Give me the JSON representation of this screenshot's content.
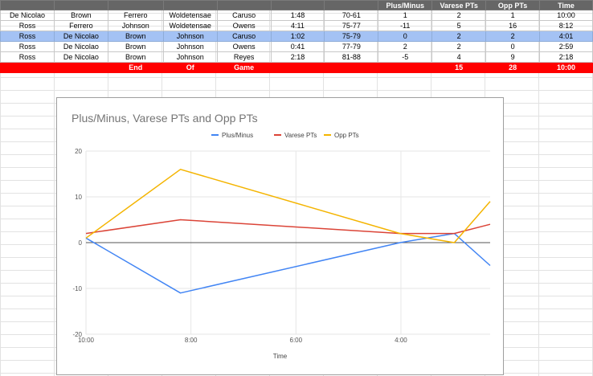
{
  "table": {
    "header": [
      "",
      "",
      "",
      "",
      "",
      "",
      "",
      "Plus/Minus",
      "Varese PTs",
      "Opp PTs",
      "Time"
    ],
    "rows": [
      [
        "De Nicolao",
        "Brown",
        "Ferrero",
        "Woldetensae",
        "Caruso",
        "1:48",
        "70-61",
        "1",
        "2",
        "1",
        "10:00"
      ],
      [
        "Ross",
        "Ferrero",
        "Johnson",
        "Woldetensae",
        "Owens",
        "4:11",
        "75-77",
        "-11",
        "5",
        "16",
        "8:12"
      ],
      [
        "Ross",
        "De Nicolao",
        "Brown",
        "Johnson",
        "Caruso",
        "1:02",
        "75-79",
        "0",
        "2",
        "2",
        "4:01"
      ],
      [
        "Ross",
        "De Nicolao",
        "Brown",
        "Johnson",
        "Owens",
        "0:41",
        "77-79",
        "2",
        "2",
        "0",
        "2:59"
      ],
      [
        "Ross",
        "De Nicolao",
        "Brown",
        "Johnson",
        "Reyes",
        "2:18",
        "81-88",
        "-5",
        "4",
        "9",
        "2:18"
      ]
    ],
    "total": [
      "",
      "",
      "End",
      "Of",
      "Game",
      "",
      "",
      "",
      "15",
      "28",
      "10:00"
    ]
  },
  "chart_data": {
    "type": "line",
    "title": "Plus/Minus, Varese PTs and Opp PTs",
    "xlabel": "Time",
    "ylabel": "",
    "x": [
      "10:00",
      "8:12",
      "4:01",
      "2:59",
      "2:18"
    ],
    "x_minutes": [
      10.0,
      8.2,
      4.0167,
      2.9833,
      2.3
    ],
    "xlim": [
      10,
      2.3
    ],
    "x_ticks": [
      "10:00",
      "8:00",
      "6:00",
      "4:00"
    ],
    "x_tick_values": [
      10,
      8,
      6,
      4
    ],
    "ylim": [
      -20,
      20
    ],
    "y_ticks": [
      -20,
      -10,
      0,
      10,
      20
    ],
    "grid": true,
    "legend_position": "top",
    "series": [
      {
        "name": "Plus/Minus",
        "color": "#4285f4",
        "values": [
          1,
          -11,
          0,
          2,
          -5
        ]
      },
      {
        "name": "Varese PTs",
        "color": "#db4437",
        "values": [
          2,
          5,
          2,
          2,
          4
        ]
      },
      {
        "name": "Opp PTs",
        "color": "#f4b400",
        "values": [
          1,
          16,
          2,
          0,
          9
        ]
      }
    ]
  }
}
